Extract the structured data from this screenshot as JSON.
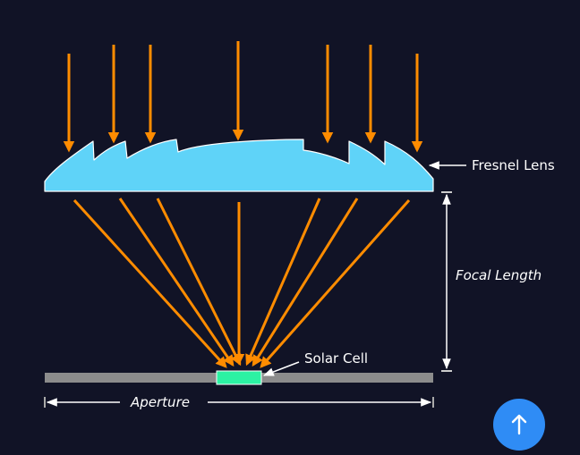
{
  "diagram": {
    "labels": {
      "lens": "Fresnel Lens",
      "focal_length": "Focal Length",
      "solar_cell": "Solar Cell",
      "aperture": "Aperture"
    },
    "colors": {
      "background": "#111326",
      "ray": "#ff8c00",
      "lens_fill": "#5fd3f8",
      "lens_stroke": "#ffffff",
      "base_plate": "#8c8c8c",
      "solar_cell": "#2cf2a3",
      "annotation": "#ffffff"
    }
  },
  "scroll_top": {
    "icon": "arrow-up-icon",
    "color": "#2f8cf5"
  }
}
